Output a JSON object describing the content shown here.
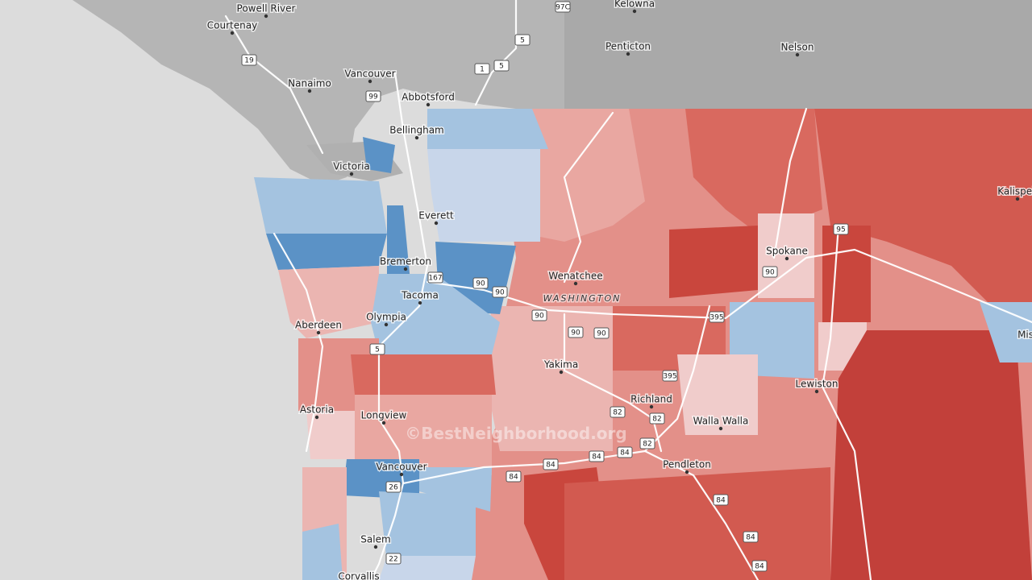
{
  "map": {
    "region_label": "WASHINGTON",
    "watermark": "©BestNeighborhood.org",
    "places": [
      "Powell River",
      "Courtenay",
      "Kelowna",
      "Penticton",
      "Nelson",
      "Nanaimo",
      "Vancouver",
      "Abbotsford",
      "Victoria",
      "Bellingham",
      "Everett",
      "Bremerton",
      "Tacoma",
      "Olympia",
      "Aberdeen",
      "Wenatchee",
      "Spokane",
      "Kalispell",
      "Yakima",
      "Richland",
      "Walla Walla",
      "Lewiston",
      "Astoria",
      "Longview",
      "Vancouver",
      "Pendleton",
      "Salem",
      "Corvallis",
      "Missoula"
    ],
    "shields": [
      "97C",
      "5",
      "1",
      "5",
      "19",
      "99",
      "167",
      "90",
      "90",
      "95",
      "90",
      "90",
      "90",
      "90",
      "395",
      "395",
      "5",
      "82",
      "82",
      "82",
      "84",
      "84",
      "84",
      "84",
      "26",
      "22",
      "84",
      "84",
      "84"
    ]
  }
}
